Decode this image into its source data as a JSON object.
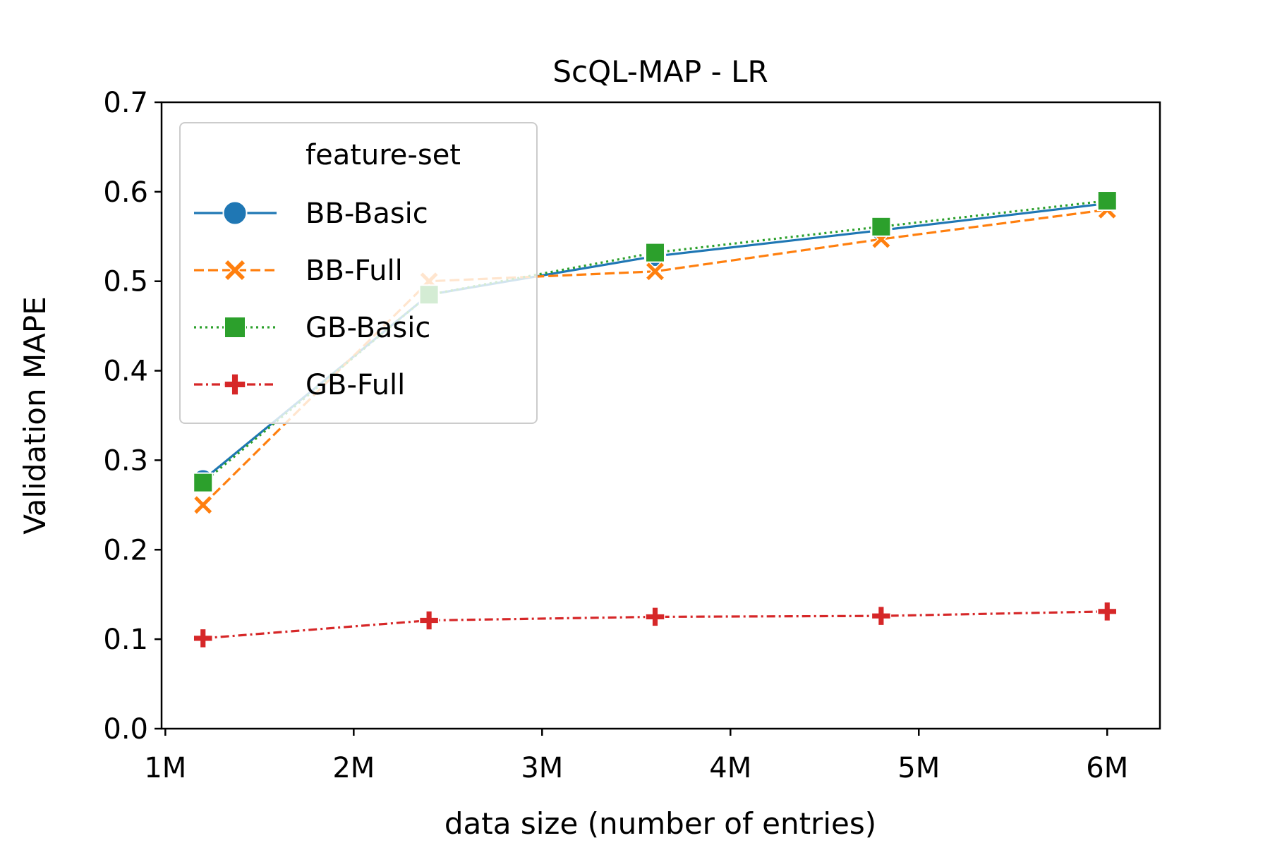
{
  "chart_data": {
    "type": "line",
    "title": "ScQL-MAP - LR",
    "xlabel": "data size (number of entries)",
    "ylabel": "Validation MAPE",
    "x": [
      1.2,
      2.4,
      3.6,
      4.8,
      6.0
    ],
    "xlim": [
      0.98,
      6.28
    ],
    "ylim": [
      0.0,
      0.7
    ],
    "xticks": [
      1,
      2,
      3,
      4,
      5,
      6
    ],
    "xtick_labels": [
      "1M",
      "2M",
      "3M",
      "4M",
      "5M",
      "6M"
    ],
    "yticks": [
      0.0,
      0.1,
      0.2,
      0.3,
      0.4,
      0.5,
      0.6,
      0.7
    ],
    "ytick_labels": [
      "0.0",
      "0.1",
      "0.2",
      "0.3",
      "0.4",
      "0.5",
      "0.6",
      "0.7"
    ],
    "grid": false,
    "legend": {
      "title": "feature-set",
      "placement": "upper-left"
    },
    "series": [
      {
        "name": "BB-Basic",
        "values": [
          0.278,
          0.485,
          0.528,
          0.557,
          0.587
        ],
        "color": "#1f77b4",
        "marker": "circle",
        "dash": "solid"
      },
      {
        "name": "BB-Full",
        "values": [
          0.25,
          0.5,
          0.511,
          0.547,
          0.58
        ],
        "color": "#ff7f0e",
        "marker": "x",
        "dash": "dashed"
      },
      {
        "name": "GB-Basic",
        "values": [
          0.275,
          0.485,
          0.532,
          0.561,
          0.59
        ],
        "color": "#2ca02c",
        "marker": "square",
        "dash": "dotted"
      },
      {
        "name": "GB-Full",
        "values": [
          0.101,
          0.121,
          0.125,
          0.126,
          0.131
        ],
        "color": "#d62728",
        "marker": "plus",
        "dash": "dashdot"
      }
    ]
  }
}
